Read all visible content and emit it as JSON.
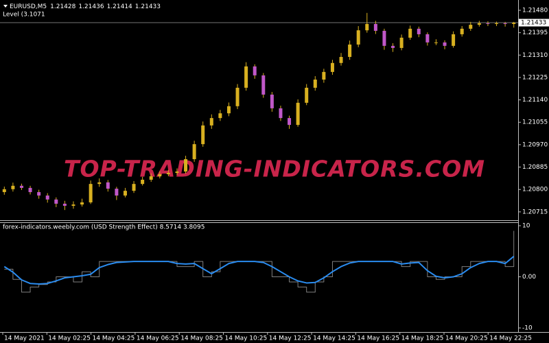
{
  "chart_data": [
    {
      "type": "candlestick",
      "title": "EURUSD,M5",
      "subtitle": "Level (3.1071",
      "annotation": "TOP-TRADING-INDICATORS.COM",
      "up_color": "#d8b020",
      "down_color": "#c058c8",
      "wick_color": "#d8b020",
      "open": [
        1.2079,
        1.20801,
        1.20814,
        1.20806,
        1.2079,
        1.20777,
        1.20762,
        1.20746,
        1.20738,
        1.20743,
        1.20751,
        1.20821,
        1.20827,
        1.20803,
        1.20777,
        1.20795,
        1.20821,
        1.20837,
        1.2085,
        1.20858,
        1.20863,
        1.20868,
        1.20915,
        1.20972,
        1.21043,
        1.21071,
        1.21089,
        1.21116,
        1.21186,
        1.21267,
        1.21233,
        1.2116,
        1.21108,
        1.21071,
        1.21045,
        1.21129,
        1.21186,
        1.21217,
        1.21246,
        1.2128,
        1.21303,
        1.2135,
        1.21404,
        1.21428,
        1.21402,
        1.21345,
        1.21337,
        1.21376,
        1.2141,
        1.21389,
        1.21358,
        1.21358,
        1.21345,
        1.21389,
        1.2141,
        1.21425,
        1.21431,
        1.21428,
        1.21431,
        1.21428
      ],
      "high": [
        1.20811,
        1.20826,
        1.20822,
        1.20814,
        1.20799,
        1.20786,
        1.2077,
        1.20757,
        1.20755,
        1.20765,
        1.20834,
        1.20842,
        1.20836,
        1.2081,
        1.20806,
        1.20832,
        1.20848,
        1.20861,
        1.20869,
        1.20874,
        1.2088,
        1.20928,
        1.20985,
        1.21058,
        1.21085,
        1.21102,
        1.2113,
        1.212,
        1.21283,
        1.21275,
        1.21242,
        1.2117,
        1.21118,
        1.2108,
        1.21142,
        1.212,
        1.2123,
        1.21258,
        1.21292,
        1.21318,
        1.21365,
        1.2142,
        1.2147,
        1.2144,
        1.2141,
        1.21355,
        1.21388,
        1.21422,
        1.21418,
        1.21396,
        1.2137,
        1.21366,
        1.214,
        1.2142,
        1.21436,
        1.2144,
        1.21438,
        1.21437,
        1.21436,
        1.21436
      ],
      "low": [
        1.2078,
        1.20792,
        1.20798,
        1.20781,
        1.20765,
        1.2075,
        1.20733,
        1.20722,
        1.20727,
        1.20735,
        1.20745,
        1.2081,
        1.20792,
        1.2076,
        1.2077,
        1.20787,
        1.20815,
        1.20829,
        1.20842,
        1.2085,
        1.20855,
        1.2086,
        1.20905,
        1.20962,
        1.2103,
        1.2106,
        1.21078,
        1.21105,
        1.21175,
        1.2122,
        1.21148,
        1.21095,
        1.2106,
        1.2103,
        1.21038,
        1.2112,
        1.21175,
        1.21205,
        1.21235,
        1.2127,
        1.21292,
        1.2134,
        1.21395,
        1.2139,
        1.2133,
        1.21322,
        1.21328,
        1.21368,
        1.21378,
        1.21346,
        1.21348,
        1.21332,
        1.21338,
        1.2138,
        1.21402,
        1.21418,
        1.2142,
        1.2142,
        1.21418,
        1.21414
      ],
      "close": [
        1.20801,
        1.20814,
        1.20806,
        1.2079,
        1.20777,
        1.20762,
        1.20746,
        1.20738,
        1.20743,
        1.20751,
        1.20821,
        1.20827,
        1.20803,
        1.20777,
        1.20795,
        1.20821,
        1.20837,
        1.2085,
        1.20858,
        1.20863,
        1.20868,
        1.20915,
        1.20972,
        1.21043,
        1.21071,
        1.21089,
        1.21116,
        1.21186,
        1.21267,
        1.21233,
        1.2116,
        1.21108,
        1.21071,
        1.21045,
        1.21129,
        1.21186,
        1.21217,
        1.21246,
        1.2128,
        1.21303,
        1.2135,
        1.21404,
        1.21428,
        1.21402,
        1.21345,
        1.21337,
        1.21376,
        1.2141,
        1.21389,
        1.21358,
        1.21358,
        1.21345,
        1.21389,
        1.2141,
        1.21425,
        1.21431,
        1.21428,
        1.21431,
        1.21428,
        1.21433
      ],
      "current_price": 1.21433,
      "ylim": [
        1.20686,
        1.21519
      ],
      "yticks": [
        {
          "value": 1.2148,
          "label": "1.21480"
        },
        1.21395,
        {
          "value": 1.2131,
          "label": "1.21310"
        },
        1.21225,
        {
          "value": 1.2114,
          "label": "1.21140"
        },
        1.21055,
        {
          "value": 1.2097,
          "label": "1.20970"
        },
        1.20885,
        {
          "value": 1.208,
          "label": "1.20800"
        },
        1.20715
      ],
      "xtick_labels": [
        "14 May 2021",
        "14 May 02:25",
        "14 May 04:25",
        "14 May 06:25",
        "14 May 08:25",
        "14 May 10:25",
        "14 May 12:25",
        "14 May 14:25",
        "14 May 16:25",
        "14 May 18:25",
        "14 May 20:25",
        "14 May 22:25"
      ]
    },
    {
      "type": "line",
      "title": "forex-indicators.weebly.com (USD Strength Effect) 8.5714 3.8095",
      "series": [
        {
          "color": "#808080",
          "line_style": "step",
          "values": [
            1.5,
            -0.5,
            -3.0,
            -2.0,
            -1.5,
            -1.0,
            0.0,
            0.0,
            -1.0,
            1.0,
            0.0,
            3.0,
            3.0,
            3.0,
            3.0,
            3.0,
            3.0,
            3.0,
            3.0,
            3.0,
            2.0,
            2.0,
            3.0,
            0.0,
            1.0,
            3.0,
            3.0,
            3.0,
            3.0,
            3.0,
            3.0,
            0.0,
            0.0,
            -1.0,
            -2.0,
            -3.0,
            -1.0,
            0.0,
            3.0,
            3.0,
            3.0,
            3.0,
            3.0,
            3.0,
            3.0,
            3.0,
            2.0,
            3.0,
            3.0,
            0.0,
            -0.5,
            0.0,
            0.0,
            2.0,
            3.0,
            3.0,
            3.0,
            3.0,
            2.0,
            9.0
          ]
        },
        {
          "color": "#2a8cf0",
          "line_style": "smooth",
          "values": [
            2.0,
            0.9,
            -0.6,
            -1.3,
            -1.4,
            -1.3,
            -0.8,
            -0.2,
            0.0,
            0.2,
            0.5,
            1.8,
            2.4,
            2.8,
            2.9,
            3.0,
            3.0,
            3.0,
            3.0,
            3.0,
            2.6,
            2.5,
            2.6,
            1.6,
            0.6,
            1.6,
            2.6,
            3.0,
            3.0,
            3.0,
            2.8,
            2.0,
            1.0,
            0.0,
            -0.8,
            -1.2,
            -1.1,
            -0.2,
            1.0,
            2.0,
            2.7,
            3.0,
            3.0,
            3.0,
            3.0,
            3.0,
            2.5,
            2.7,
            2.8,
            1.2,
            0.1,
            -0.2,
            0.0,
            0.6,
            1.8,
            2.6,
            3.0,
            3.0,
            2.6,
            4.0
          ]
        }
      ],
      "ylim": [
        -10.8,
        10.67
      ],
      "yticks": [
        10,
        {
          "value": 0,
          "label": "0.00"
        },
        -10
      ]
    }
  ]
}
